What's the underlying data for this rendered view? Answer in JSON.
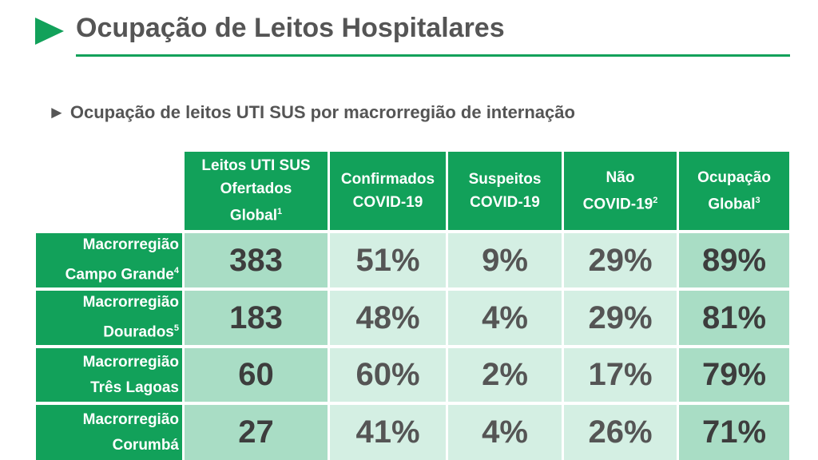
{
  "title": "Ocupação de Leitos Hospitalares",
  "subtitle": "► Ocupação de leitos UTI SUS por macrorregião de internação",
  "colors": {
    "accent": "#12a15a",
    "cell_strong": "#a9ddc5",
    "cell_light": "#d4efe3"
  },
  "columns": [
    {
      "lines": [
        "Leitos UTI SUS",
        "Ofertados",
        "Global"
      ],
      "sup": "1"
    },
    {
      "lines": [
        "Confirmados",
        "COVID-19"
      ],
      "sup": ""
    },
    {
      "lines": [
        "Suspeitos",
        "COVID-19"
      ],
      "sup": ""
    },
    {
      "lines": [
        "Não",
        "COVID-19"
      ],
      "sup": "2"
    },
    {
      "lines": [
        "Ocupação",
        "Global"
      ],
      "sup": "3"
    }
  ],
  "rows": [
    {
      "lines": [
        "Macrorregião",
        "Campo Grande"
      ],
      "sup": "4",
      "values": [
        "383",
        "51%",
        "9%",
        "29%",
        "89%"
      ]
    },
    {
      "lines": [
        "Macrorregião",
        "Dourados"
      ],
      "sup": "5",
      "values": [
        "183",
        "48%",
        "4%",
        "29%",
        "81%"
      ]
    },
    {
      "lines": [
        "Macrorregião",
        "Três Lagoas"
      ],
      "sup": "",
      "values": [
        "60",
        "60%",
        "2%",
        "17%",
        "79%"
      ]
    },
    {
      "lines": [
        "Macrorregião",
        "Corumbá"
      ],
      "sup": "",
      "values": [
        "27",
        "41%",
        "4%",
        "26%",
        "71%"
      ]
    }
  ]
}
